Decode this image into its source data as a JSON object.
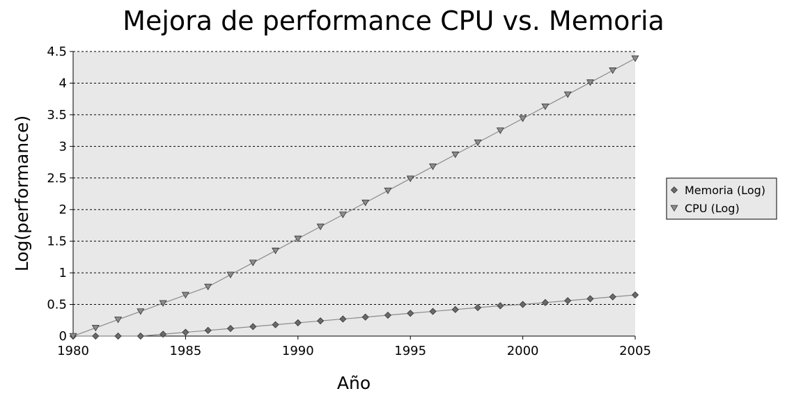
{
  "chart_data": {
    "type": "line",
    "title": "Mejora de performance CPU vs. Memoria",
    "xlabel": "Año",
    "ylabel": "Log(performance)",
    "xlim": [
      1980,
      2005
    ],
    "ylim": [
      0,
      4.5
    ],
    "x_ticks": [
      "1980",
      "1985",
      "1990",
      "1995",
      "2000",
      "2005"
    ],
    "y_ticks": [
      "0",
      "0.5",
      "1",
      "1.5",
      "2",
      "2.5",
      "3",
      "3.5",
      "4",
      "4.5"
    ],
    "grid": "horizontal dashed",
    "legend_position": "right",
    "colors": {
      "plot_background": "#e8e8e8",
      "line": "#8a8a8a",
      "marker_memoria": "#6a6a6a",
      "marker_cpu": "#8c8c8c"
    },
    "x": [
      1980,
      1981,
      1982,
      1983,
      1984,
      1985,
      1986,
      1987,
      1988,
      1989,
      1990,
      1991,
      1992,
      1993,
      1994,
      1995,
      1996,
      1997,
      1998,
      1999,
      2000,
      2001,
      2002,
      2003,
      2004,
      2005
    ],
    "series": [
      {
        "name": "Memoria (Log)",
        "marker": "diamond",
        "values": [
          0,
          0,
          0,
          0,
          0.03,
          0.06,
          0.09,
          0.12,
          0.15,
          0.18,
          0.21,
          0.24,
          0.27,
          0.3,
          0.33,
          0.36,
          0.39,
          0.42,
          0.45,
          0.48,
          0.5,
          0.53,
          0.56,
          0.59,
          0.62,
          0.65
        ]
      },
      {
        "name": "CPU (Log)",
        "marker": "triangle-down",
        "values": [
          0,
          0.13,
          0.26,
          0.39,
          0.52,
          0.65,
          0.78,
          0.97,
          1.16,
          1.35,
          1.54,
          1.73,
          1.92,
          2.11,
          2.3,
          2.49,
          2.68,
          2.87,
          3.06,
          3.25,
          3.44,
          3.63,
          3.82,
          4.01,
          4.2,
          4.39
        ]
      }
    ]
  }
}
